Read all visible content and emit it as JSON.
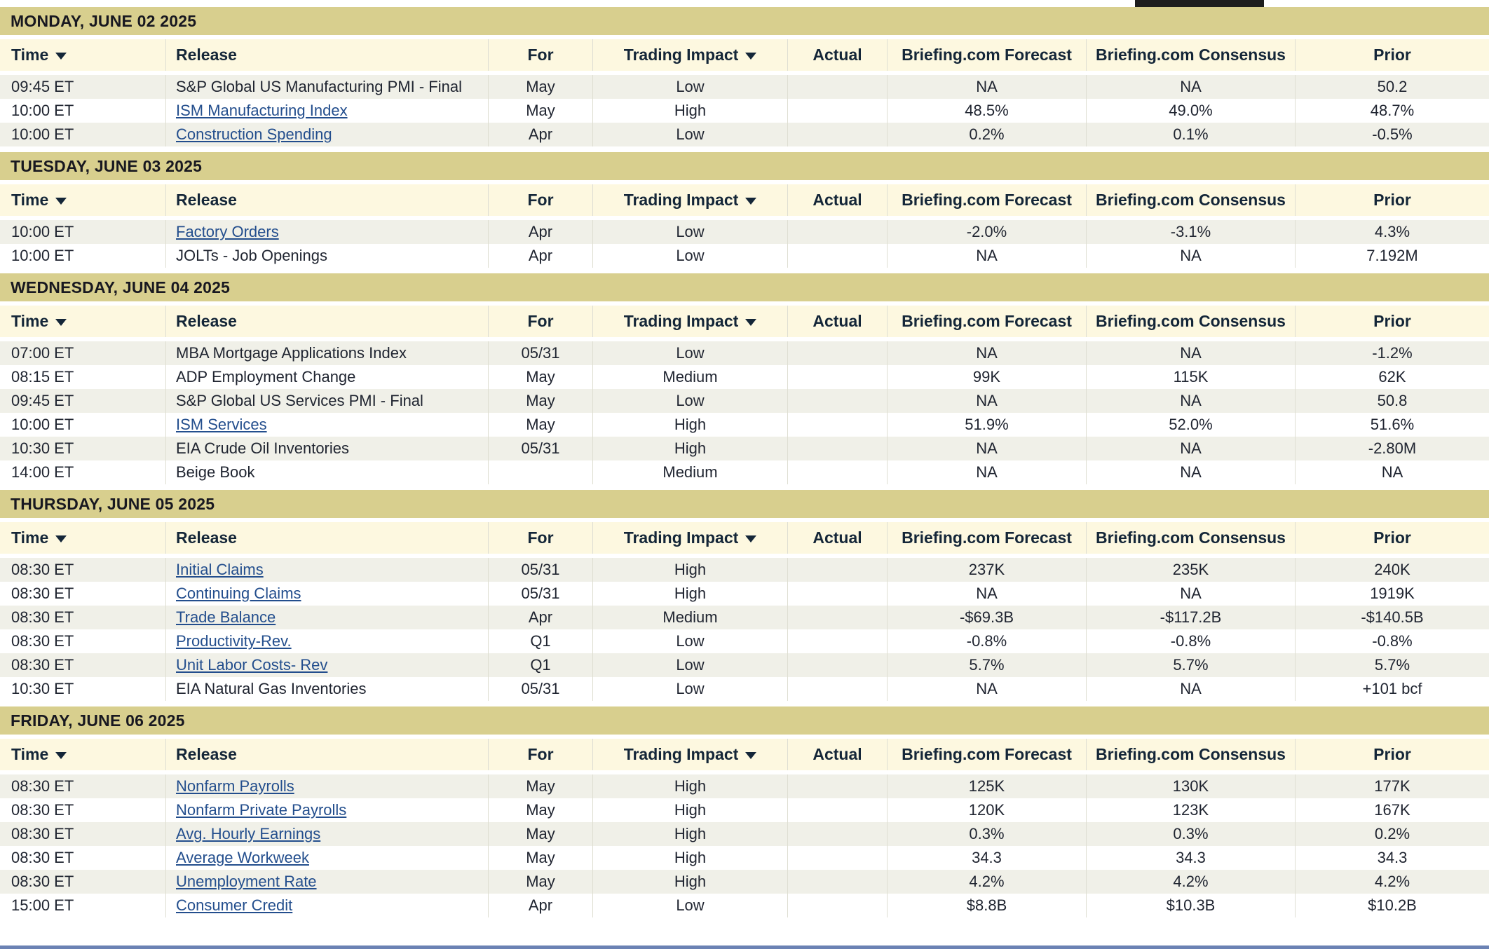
{
  "calendar": {
    "columns": [
      {
        "key": "time",
        "label": "Time",
        "sortable": true,
        "align": "left"
      },
      {
        "key": "release",
        "label": "Release",
        "sortable": false,
        "align": "left"
      },
      {
        "key": "for",
        "label": "For",
        "sortable": false,
        "align": "center"
      },
      {
        "key": "impact",
        "label": "Trading Impact",
        "sortable": true,
        "align": "center"
      },
      {
        "key": "actual",
        "label": "Actual",
        "sortable": false,
        "align": "center"
      },
      {
        "key": "forecast",
        "label": "Briefing.com Forecast",
        "sortable": false,
        "align": "center"
      },
      {
        "key": "consensus",
        "label": "Briefing.com Consensus",
        "sortable": false,
        "align": "center"
      },
      {
        "key": "prior",
        "label": "Prior",
        "sortable": false,
        "align": "center"
      }
    ],
    "days": [
      {
        "title": "MONDAY, JUNE 02 2025",
        "rows": [
          {
            "time": "09:45 ET",
            "release": "S&P Global US Manufacturing PMI - Final",
            "link": false,
            "for": "May",
            "impact": "Low",
            "actual": "",
            "forecast": "NA",
            "consensus": "NA",
            "prior": "50.2"
          },
          {
            "time": "10:00 ET",
            "release": "ISM Manufacturing Index",
            "link": true,
            "for": "May",
            "impact": "High",
            "actual": "",
            "forecast": "48.5%",
            "consensus": "49.0%",
            "prior": "48.7%"
          },
          {
            "time": "10:00 ET",
            "release": "Construction Spending",
            "link": true,
            "for": "Apr",
            "impact": "Low",
            "actual": "",
            "forecast": "0.2%",
            "consensus": "0.1%",
            "prior": "-0.5%"
          }
        ]
      },
      {
        "title": "TUESDAY, JUNE 03 2025",
        "rows": [
          {
            "time": "10:00 ET",
            "release": "Factory Orders",
            "link": true,
            "for": "Apr",
            "impact": "Low",
            "actual": "",
            "forecast": "-2.0%",
            "consensus": "-3.1%",
            "prior": "4.3%"
          },
          {
            "time": "10:00 ET",
            "release": "JOLTs - Job Openings",
            "link": false,
            "for": "Apr",
            "impact": "Low",
            "actual": "",
            "forecast": "NA",
            "consensus": "NA",
            "prior": "7.192M"
          }
        ]
      },
      {
        "title": "WEDNESDAY, JUNE 04 2025",
        "rows": [
          {
            "time": "07:00 ET",
            "release": "MBA Mortgage Applications Index",
            "link": false,
            "for": "05/31",
            "impact": "Low",
            "actual": "",
            "forecast": "NA",
            "consensus": "NA",
            "prior": "-1.2%"
          },
          {
            "time": "08:15 ET",
            "release": "ADP Employment Change",
            "link": false,
            "for": "May",
            "impact": "Medium",
            "actual": "",
            "forecast": "99K",
            "consensus": "115K",
            "prior": "62K"
          },
          {
            "time": "09:45 ET",
            "release": "S&P Global US Services PMI - Final",
            "link": false,
            "for": "May",
            "impact": "Low",
            "actual": "",
            "forecast": "NA",
            "consensus": "NA",
            "prior": "50.8"
          },
          {
            "time": "10:00 ET",
            "release": "ISM Services",
            "link": true,
            "for": "May",
            "impact": "High",
            "actual": "",
            "forecast": "51.9%",
            "consensus": "52.0%",
            "prior": "51.6%"
          },
          {
            "time": "10:30 ET",
            "release": "EIA Crude Oil Inventories",
            "link": false,
            "for": "05/31",
            "impact": "High",
            "actual": "",
            "forecast": "NA",
            "consensus": "NA",
            "prior": "-2.80M"
          },
          {
            "time": "14:00 ET",
            "release": "Beige Book",
            "link": false,
            "for": "",
            "impact": "Medium",
            "actual": "",
            "forecast": "NA",
            "consensus": "NA",
            "prior": "NA"
          }
        ]
      },
      {
        "title": "THURSDAY, JUNE 05 2025",
        "rows": [
          {
            "time": "08:30 ET",
            "release": "Initial Claims",
            "link": true,
            "for": "05/31",
            "impact": "High",
            "actual": "",
            "forecast": "237K",
            "consensus": "235K",
            "prior": "240K"
          },
          {
            "time": "08:30 ET",
            "release": "Continuing Claims",
            "link": true,
            "for": "05/31",
            "impact": "High",
            "actual": "",
            "forecast": "NA",
            "consensus": "NA",
            "prior": "1919K"
          },
          {
            "time": "08:30 ET",
            "release": "Trade Balance",
            "link": true,
            "for": "Apr",
            "impact": "Medium",
            "actual": "",
            "forecast": "-$69.3B",
            "consensus": "-$117.2B",
            "prior": "-$140.5B"
          },
          {
            "time": "08:30 ET",
            "release": "Productivity-Rev.",
            "link": true,
            "for": "Q1",
            "impact": "Low",
            "actual": "",
            "forecast": "-0.8%",
            "consensus": "-0.8%",
            "prior": "-0.8%"
          },
          {
            "time": "08:30 ET",
            "release": "Unit Labor Costs- Rev",
            "link": true,
            "for": "Q1",
            "impact": "Low",
            "actual": "",
            "forecast": "5.7%",
            "consensus": "5.7%",
            "prior": "5.7%"
          },
          {
            "time": "10:30 ET",
            "release": "EIA Natural Gas Inventories",
            "link": false,
            "for": "05/31",
            "impact": "Low",
            "actual": "",
            "forecast": "NA",
            "consensus": "NA",
            "prior": "+101 bcf"
          }
        ]
      },
      {
        "title": "FRIDAY, JUNE 06 2025",
        "rows": [
          {
            "time": "08:30 ET",
            "release": "Nonfarm Payrolls",
            "link": true,
            "for": "May",
            "impact": "High",
            "actual": "",
            "forecast": "125K",
            "consensus": "130K",
            "prior": "177K"
          },
          {
            "time": "08:30 ET",
            "release": "Nonfarm Private Payrolls",
            "link": true,
            "for": "May",
            "impact": "High",
            "actual": "",
            "forecast": "120K",
            "consensus": "123K",
            "prior": "167K"
          },
          {
            "time": "08:30 ET",
            "release": "Avg. Hourly Earnings",
            "link": true,
            "for": "May",
            "impact": "High",
            "actual": "",
            "forecast": "0.3%",
            "consensus": "0.3%",
            "prior": "0.2%"
          },
          {
            "time": "08:30 ET",
            "release": "Average Workweek",
            "link": true,
            "for": "May",
            "impact": "High",
            "actual": "",
            "forecast": "34.3",
            "consensus": "34.3",
            "prior": "34.3"
          },
          {
            "time": "08:30 ET",
            "release": "Unemployment Rate",
            "link": true,
            "for": "May",
            "impact": "High",
            "actual": "",
            "forecast": "4.2%",
            "consensus": "4.2%",
            "prior": "4.2%"
          },
          {
            "time": "15:00 ET",
            "release": "Consumer Credit",
            "link": true,
            "for": "Apr",
            "impact": "Low",
            "actual": "",
            "forecast": "$8.8B",
            "consensus": "$10.3B",
            "prior": "$10.2B"
          }
        ]
      }
    ]
  },
  "colors": {
    "band_bg": "#d8cf8e",
    "band_text": "#181820",
    "header_bg": "#fdf8e0",
    "header_text": "#142638",
    "row_bg": "#ffffff",
    "row_alt_bg": "#f0f0e8",
    "text": "#1f2430",
    "link": "#234e8d",
    "cell_border": "#deded2",
    "bottom_bar": "#6b82b4",
    "top_strip": "#1d1d1d"
  }
}
